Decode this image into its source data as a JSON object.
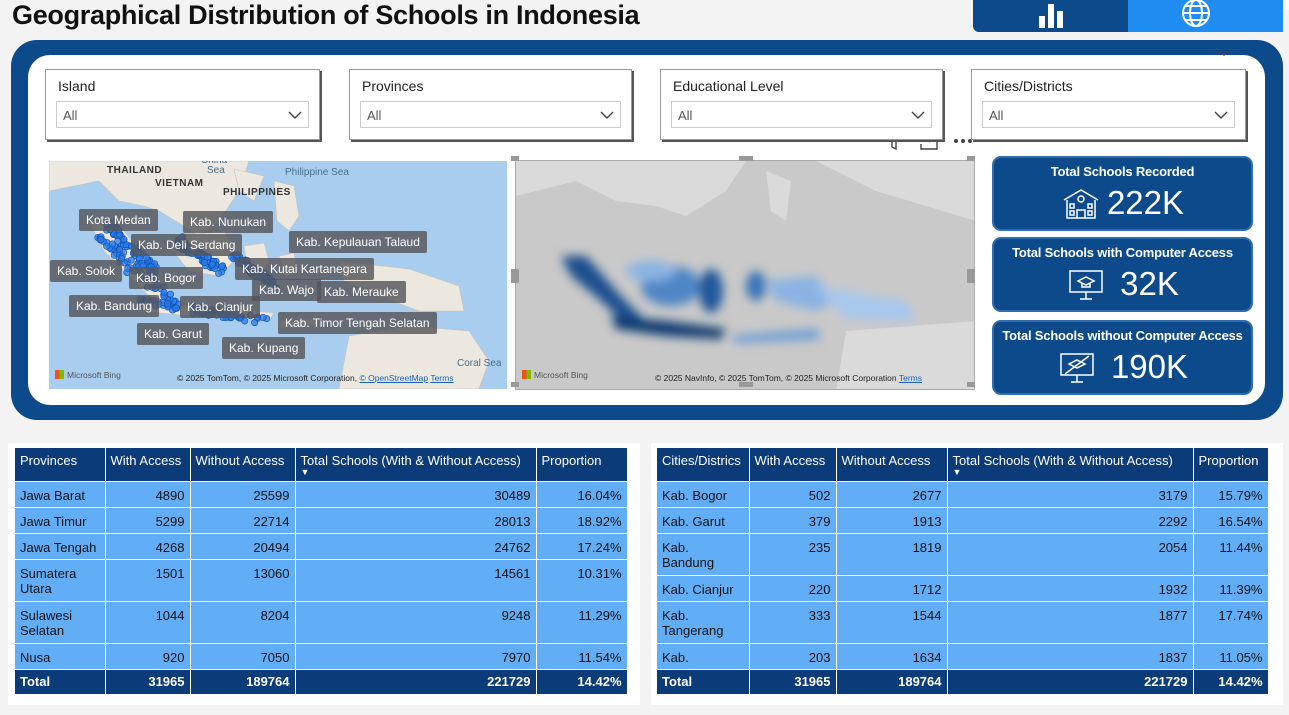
{
  "header": {
    "title": "Geographical Distribution of Schools in Indonesia"
  },
  "filters": [
    {
      "label": "Island",
      "value": "All"
    },
    {
      "label": "Provinces",
      "value": "All"
    },
    {
      "label": "Educational Level",
      "value": "All"
    },
    {
      "label": "Cities/Districts",
      "value": "All"
    }
  ],
  "map1": {
    "geo_labels": [
      "THAILAND",
      "VIETNAM",
      "PHILIPPINES"
    ],
    "sea_labels": [
      "Philippine Sea",
      "China",
      "Sea",
      "Coral Sea"
    ],
    "place_labels": [
      "Kota Medan",
      "Kab. Nunukan",
      "Kab. Deli Serdang",
      "Kab. Kepulauan Talaud",
      "Kab. Solok",
      "Kab. Bogor",
      "Kab. Kutai Kartanegara",
      "Kab. Wajo",
      "Kab. Merauke",
      "Kab. Bandung",
      "Kab. Cianjur",
      "Kab. Timor Tengah Selatan",
      "Kab. Garut",
      "Kab. Kupang"
    ],
    "logo": "Microsoft Bing",
    "attribution": "© 2025 TomTom, © 2025 Microsoft Corporation,",
    "osm": "© OpenStreetMap",
    "terms": "Terms"
  },
  "map2": {
    "logo": "Microsoft Bing",
    "attribution": "© 2025 NavInfo, © 2025 TomTom, © 2025 Microsoft Corporation",
    "terms": "Terms"
  },
  "kpis": [
    {
      "title": "Total Schools Recorded",
      "value": "222K"
    },
    {
      "title": "Total Schools with Computer Access",
      "value": "32K"
    },
    {
      "title": "Total Schools without Computer Access",
      "value": "190K"
    }
  ],
  "tables": [
    {
      "columns": [
        "Provinces",
        "With Access",
        "Without Access",
        "Total Schools (With & Without Access)",
        "Proportion"
      ],
      "rows": [
        [
          "Jawa Barat",
          "4890",
          "25599",
          "30489",
          "16.04%"
        ],
        [
          "Jawa Timur",
          "5299",
          "22714",
          "28013",
          "18.92%"
        ],
        [
          "Jawa Tengah",
          "4268",
          "20494",
          "24762",
          "17.24%"
        ],
        [
          "Sumatera Utara",
          "1501",
          "13060",
          "14561",
          "10.31%"
        ],
        [
          "Sulawesi Selatan",
          "1044",
          "8204",
          "9248",
          "11.29%"
        ],
        [
          "Nusa",
          "920",
          "7050",
          "7970",
          "11.54%"
        ]
      ],
      "total": [
        "Total",
        "31965",
        "189764",
        "221729",
        "14.42%"
      ]
    },
    {
      "columns": [
        "Cities/Districs",
        "With Access",
        "Without Access",
        "Total Schools (With & Without Access)",
        "Proportion"
      ],
      "rows": [
        [
          "Kab. Bogor",
          "502",
          "2677",
          "3179",
          "15.79%"
        ],
        [
          "Kab. Garut",
          "379",
          "1913",
          "2292",
          "16.54%"
        ],
        [
          "Kab. Bandung",
          "235",
          "1819",
          "2054",
          "11.44%"
        ],
        [
          "Kab. Cianjur",
          "220",
          "1712",
          "1932",
          "11.39%"
        ],
        [
          "Kab. Tangerang",
          "333",
          "1544",
          "1877",
          "17.74%"
        ],
        [
          "Kab.",
          "203",
          "1634",
          "1837",
          "11.05%"
        ]
      ],
      "total": [
        "Total",
        "31965",
        "189764",
        "221729",
        "14.42%"
      ]
    }
  ]
}
